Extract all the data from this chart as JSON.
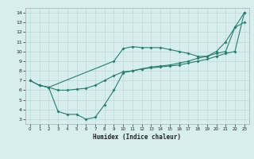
{
  "xlabel": "Humidex (Indice chaleur)",
  "bg_color": "#d6eeed",
  "grid_color": "#c0d8d5",
  "line_color": "#2a7d6e",
  "xlim": [
    -0.5,
    23.5
  ],
  "ylim": [
    2.5,
    14.5
  ],
  "xticks": [
    0,
    1,
    2,
    3,
    4,
    5,
    6,
    7,
    8,
    9,
    10,
    11,
    12,
    13,
    14,
    15,
    16,
    17,
    18,
    19,
    20,
    21,
    22,
    23
  ],
  "yticks": [
    3,
    4,
    5,
    6,
    7,
    8,
    9,
    10,
    11,
    12,
    13,
    14
  ],
  "line1_x": [
    0,
    1,
    2,
    3,
    4,
    5,
    6,
    7,
    8,
    9,
    10,
    11,
    12,
    13,
    14,
    15,
    16,
    17,
    18,
    19,
    20,
    21,
    22,
    23
  ],
  "line1_y": [
    7.0,
    6.5,
    6.3,
    3.8,
    3.5,
    3.5,
    3.0,
    3.2,
    4.5,
    6.0,
    7.8,
    8.0,
    8.2,
    8.3,
    8.4,
    8.5,
    8.6,
    8.8,
    9.0,
    9.2,
    9.5,
    9.8,
    10.0,
    14.0
  ],
  "line2_x": [
    0,
    1,
    2,
    3,
    4,
    5,
    6,
    7,
    8,
    9,
    10,
    11,
    12,
    13,
    14,
    15,
    16,
    17,
    18,
    19,
    20,
    21,
    22,
    23
  ],
  "line2_y": [
    7.0,
    6.5,
    6.3,
    6.0,
    6.0,
    6.1,
    6.2,
    6.5,
    7.0,
    7.5,
    7.9,
    8.0,
    8.2,
    8.4,
    8.5,
    8.6,
    8.8,
    9.0,
    9.3,
    9.5,
    9.8,
    10.0,
    12.5,
    13.0
  ],
  "line3_x": [
    1,
    2,
    9,
    10,
    11,
    12,
    13,
    14,
    15,
    16,
    17,
    18,
    19,
    20,
    21,
    22,
    23
  ],
  "line3_y": [
    6.5,
    6.3,
    9.0,
    10.3,
    10.5,
    10.4,
    10.4,
    10.4,
    10.2,
    10.0,
    9.8,
    9.5,
    9.5,
    10.0,
    11.0,
    12.5,
    14.0
  ]
}
